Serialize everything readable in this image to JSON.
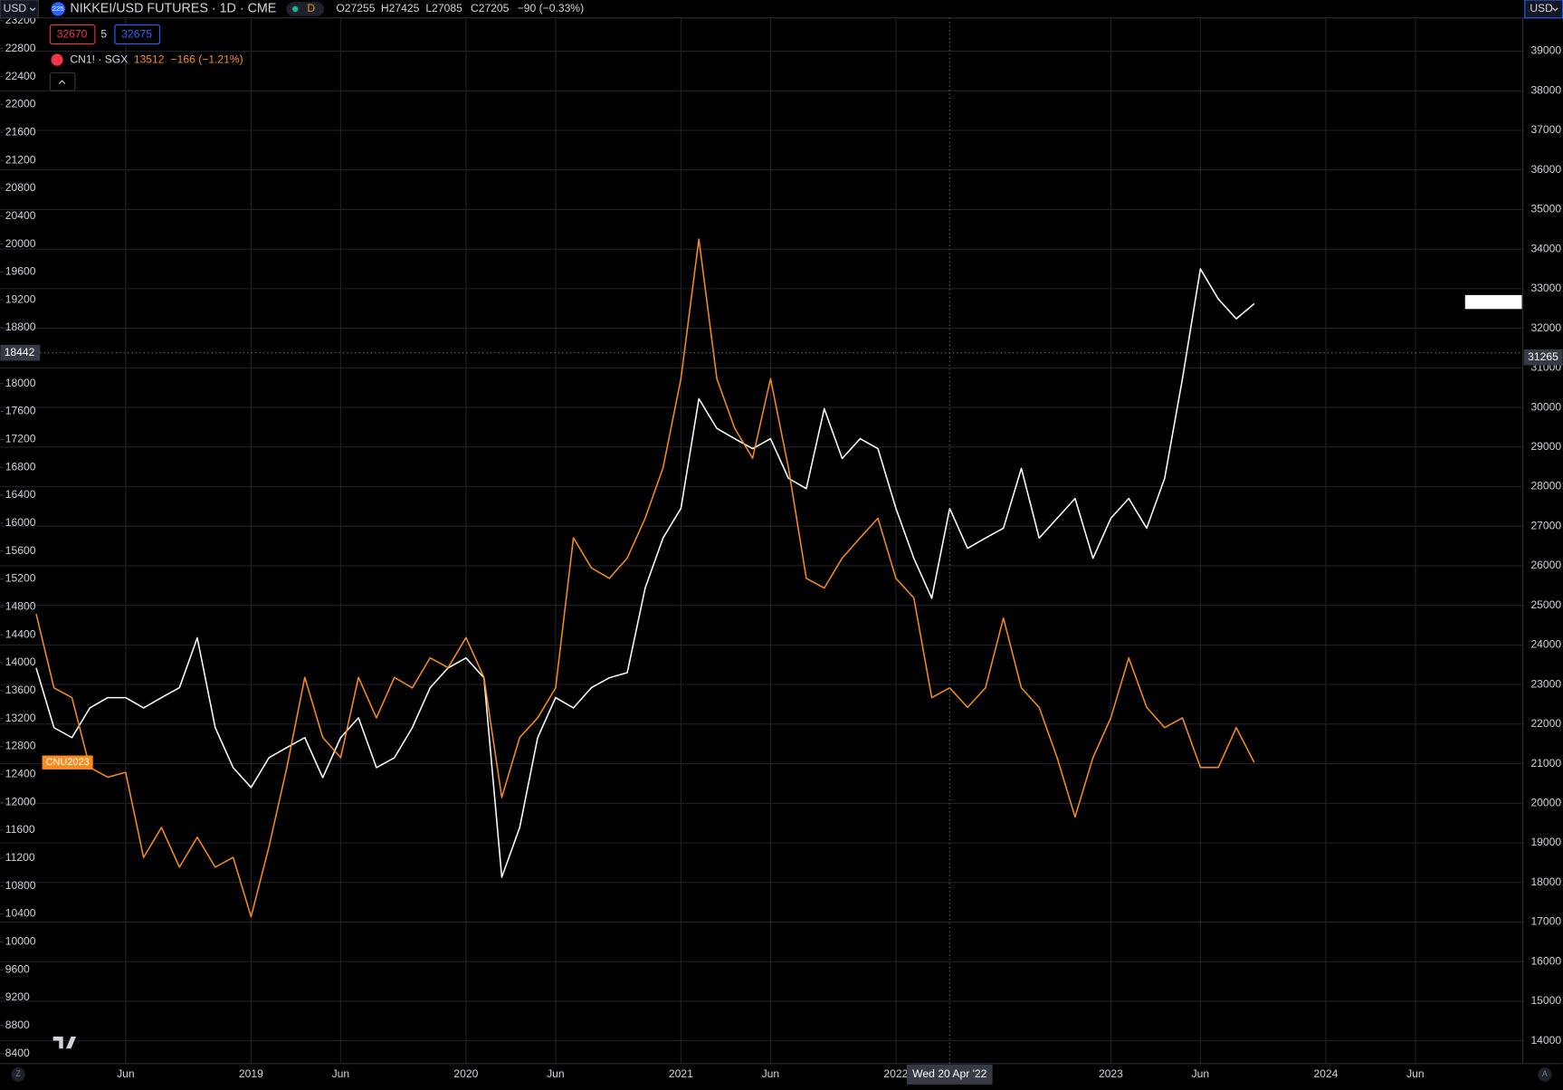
{
  "chart_data": {
    "type": "line",
    "x": [
      "2018-01",
      "2018-02",
      "2018-03",
      "2018-04",
      "2018-05",
      "2018-06",
      "2018-07",
      "2018-08",
      "2018-09",
      "2018-10",
      "2018-11",
      "2018-12",
      "2019-01",
      "2019-02",
      "2019-03",
      "2019-04",
      "2019-05",
      "2019-06",
      "2019-07",
      "2019-08",
      "2019-09",
      "2019-10",
      "2019-11",
      "2019-12",
      "2020-01",
      "2020-02",
      "2020-03",
      "2020-04",
      "2020-05",
      "2020-06",
      "2020-07",
      "2020-08",
      "2020-09",
      "2020-10",
      "2020-11",
      "2020-12",
      "2021-01",
      "2021-02",
      "2021-03",
      "2021-04",
      "2021-05",
      "2021-06",
      "2021-07",
      "2021-08",
      "2021-09",
      "2021-10",
      "2021-11",
      "2021-12",
      "2022-01",
      "2022-02",
      "2022-03",
      "2022-04",
      "2022-05",
      "2022-06",
      "2022-07",
      "2022-08",
      "2022-09",
      "2022-10",
      "2022-11",
      "2022-12",
      "2023-01",
      "2023-02",
      "2023-03",
      "2023-04",
      "2023-05",
      "2023-06",
      "2023-07",
      "2023-08",
      "2023-09"
    ],
    "xlim": [
      "2017-11",
      "2024-12"
    ],
    "xticks": [
      {
        "value": "2018-06",
        "label": "Jun"
      },
      {
        "value": "2019-01",
        "label": "2019"
      },
      {
        "value": "2019-06",
        "label": "Jun"
      },
      {
        "value": "2020-01",
        "label": "2020"
      },
      {
        "value": "2020-06",
        "label": "Jun"
      },
      {
        "value": "2021-01",
        "label": "2021"
      },
      {
        "value": "2021-06",
        "label": "Jun"
      },
      {
        "value": "2022-01",
        "label": "2022"
      },
      {
        "value": "2023-01",
        "label": "2023"
      },
      {
        "value": "2023-06",
        "label": "Jun"
      },
      {
        "value": "2024-01",
        "label": "2024"
      },
      {
        "value": "2024-06",
        "label": "Jun"
      }
    ],
    "ylim": [
      8270,
      23240
    ],
    "yticks": [
      8400,
      8800,
      9200,
      9600,
      10000,
      10400,
      10800,
      11200,
      11600,
      12000,
      12400,
      12800,
      13200,
      13600,
      14000,
      14400,
      14800,
      15200,
      15600,
      16000,
      16400,
      16800,
      17200,
      17600,
      18000,
      18800,
      19200,
      19600,
      20000,
      20400,
      20800,
      21200,
      21600,
      22000,
      22400,
      22800,
      23200
    ],
    "y2lim": [
      13450,
      39840
    ],
    "y2ticks": [
      14000,
      15000,
      16000,
      17000,
      18000,
      19000,
      20000,
      21000,
      22000,
      23000,
      24000,
      25000,
      26000,
      27000,
      28000,
      29000,
      30000,
      31000,
      32000,
      33000,
      34000,
      35000,
      36000,
      37000,
      38000,
      39000
    ],
    "grid": true,
    "series": [
      {
        "name": "NIKKEI/USD FUTURES · 1D · CME",
        "color": "#ffffff",
        "axis": "y2",
        "values": [
          23420,
          21910,
          21660,
          22410,
          22670,
          22670,
          22410,
          22670,
          22920,
          24180,
          21910,
          20900,
          20400,
          21150,
          21410,
          21660,
          20650,
          21660,
          22160,
          20900,
          21150,
          21910,
          22920,
          23420,
          23670,
          23170,
          18130,
          19390,
          21660,
          22670,
          22410,
          22920,
          23170,
          23300,
          25440,
          26700,
          27450,
          30220,
          29470,
          29210,
          28960,
          29210,
          28210,
          27950,
          29970,
          28710,
          29210,
          28960,
          27450,
          26190,
          25180,
          27450,
          26440,
          26700,
          26950,
          28460,
          26700,
          27200,
          27700,
          26190,
          27200,
          27700,
          26950,
          28210,
          30730,
          33500,
          32740,
          32240,
          32620
        ]
      },
      {
        "name": "CN1! · SGX",
        "color": "#f68c1e",
        "axis": "y",
        "values": [
          14700,
          13640,
          13500,
          12500,
          12360,
          12430,
          11210,
          11640,
          11070,
          11500,
          11070,
          11210,
          10360,
          11360,
          12500,
          13790,
          12930,
          12640,
          13790,
          13210,
          13790,
          13640,
          14070,
          13930,
          14360,
          13790,
          12070,
          12930,
          13210,
          13640,
          15790,
          15360,
          15210,
          15500,
          16070,
          16790,
          18070,
          20070,
          18070,
          17360,
          16930,
          18070,
          16790,
          15210,
          15070,
          15500,
          15790,
          16070,
          15210,
          14930,
          13500,
          13640,
          13360,
          13640,
          14640,
          13640,
          13360,
          12640,
          11790,
          12640,
          13210,
          14070,
          13360,
          13070,
          13210,
          12500,
          12500,
          13070,
          12570
        ]
      }
    ],
    "series_tag": "CNU2023",
    "crosshair": {
      "x": "2022-04",
      "x_label": "Wed 20 Apr '22",
      "left_value": 18442,
      "right_value": 31265
    }
  },
  "ui": {
    "currency_left": "USD",
    "currency_right": "USD",
    "symbol_icon": "225",
    "interval": "D",
    "ohlc": [
      "O27255",
      "H27425",
      "L27085",
      "C27205",
      "−90 (−0.33%)"
    ],
    "bid": 32670,
    "spread": 5,
    "ask": 32675,
    "compare_last": "13512",
    "compare_change": "−166 (−1.21%)",
    "corner_left": "Z",
    "corner_right": "A"
  }
}
